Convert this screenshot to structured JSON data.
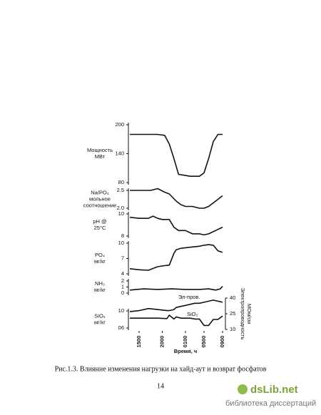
{
  "chart_data": [
    {
      "type": "line",
      "ylabel": [
        "Мощность",
        "МВт"
      ],
      "xlim": [
        -2,
        18
      ],
      "ylim": [
        80,
        200
      ],
      "yticks": [
        80,
        140,
        200
      ],
      "color": "#111111",
      "x": [
        -2,
        4,
        5.5,
        6.5,
        7.5,
        8.5,
        11,
        13,
        14,
        15,
        16,
        17,
        18
      ],
      "values": [
        180,
        180,
        178,
        160,
        130,
        97,
        93,
        93,
        100,
        130,
        165,
        180,
        180
      ]
    },
    {
      "type": "line",
      "ylabel": [
        "Na/PO₄",
        "мольное",
        "соотношение"
      ],
      "xlim": [
        -2,
        18
      ],
      "ylim": [
        2.0,
        2.5
      ],
      "yticks": [
        {
          "value": 2.0,
          "label": "2.0"
        },
        2.5
      ],
      "color": "#111111",
      "x": [
        -2,
        2.5,
        4,
        5.5,
        6.5,
        8,
        9,
        10,
        11.5,
        13,
        14,
        15,
        16.5,
        18
      ],
      "values": [
        2.5,
        2.5,
        2.55,
        2.45,
        2.4,
        2.2,
        2.1,
        2.05,
        2.05,
        2.0,
        2.0,
        2.05,
        2.2,
        2.35
      ]
    },
    {
      "type": "line",
      "ylabel": [
        "pH @",
        "25°C"
      ],
      "xlim": [
        -2,
        18
      ],
      "ylim": [
        8,
        10
      ],
      "yticks": [
        8,
        10
      ],
      "color": "#111111",
      "x": [
        -2,
        0,
        2,
        3,
        4,
        5,
        6.5,
        7.5,
        8.5,
        10,
        11.5,
        13,
        14,
        15,
        16.5,
        18
      ],
      "values": [
        9.7,
        9.6,
        9.6,
        9.8,
        9.6,
        9.5,
        9.5,
        8.8,
        8.5,
        8.5,
        8.2,
        8.2,
        8.1,
        8.2,
        8.5,
        8.8
      ]
    },
    {
      "type": "line",
      "ylabel": [
        "PO₄",
        "мг/кг"
      ],
      "xlim": [
        -2,
        18
      ],
      "ylim": [
        4,
        10
      ],
      "yticks": [
        4,
        7,
        10
      ],
      "color": "#111111",
      "x": [
        -2,
        0,
        2,
        4,
        5.5,
        6.5,
        7.5,
        8,
        9,
        11,
        13,
        14,
        15,
        16,
        17,
        18
      ],
      "values": [
        5,
        4.8,
        4.7,
        5.4,
        5.6,
        5.7,
        8,
        8.7,
        9,
        9.2,
        9.4,
        9.6,
        9.7,
        9.6,
        8.5,
        8.2
      ]
    },
    {
      "type": "line",
      "ylabel": [
        "NH₃",
        "мг/кг"
      ],
      "xlim": [
        -2,
        18
      ],
      "ylim": [
        0,
        2
      ],
      "yticks": [
        0,
        1,
        2
      ],
      "color": "#111111",
      "x": [
        -2,
        1,
        4,
        7,
        10,
        13,
        15,
        16.5,
        17.5,
        18
      ],
      "values": [
        0.5,
        0.7,
        0.6,
        0.7,
        0.6,
        0.6,
        0.7,
        0.5,
        0.7,
        1.1
      ]
    },
    {
      "type": "line",
      "ylabel": [
        "SiO₂",
        "мг/кг"
      ],
      "xlim": [
        -2,
        18
      ],
      "ylim": [
        6,
        10
      ],
      "yticks": [
        {
          "value": 6,
          "label": "06"
        },
        10
      ],
      "y2label": [
        "Электропроводность",
        "МОм/см"
      ],
      "y2lim": [
        10,
        40
      ],
      "y2ticks": [
        10,
        25,
        40
      ],
      "xlabel": "Время, ч",
      "xticks": [
        {
          "value": 0,
          "label": "1500"
        },
        {
          "value": 5,
          "label": "2000"
        },
        {
          "value": 10,
          "label": "0100"
        },
        {
          "value": 14,
          "label": "0500"
        },
        {
          "value": 18,
          "label": "0900"
        }
      ],
      "x": [
        -2,
        0,
        2,
        4,
        6,
        6.5,
        7.5,
        8,
        9,
        10,
        11,
        12,
        13,
        14,
        15,
        16,
        17,
        18
      ],
      "series": [
        {
          "name": "SiO₂",
          "color": "#111111",
          "values": [
            8.3,
            8.3,
            8.3,
            8.3,
            8.2,
            9,
            8.1,
            8.6,
            8.3,
            8.3,
            8.3,
            8.1,
            8.1,
            6.6,
            6.6,
            8,
            8,
            8.8
          ]
        },
        {
          "name": "Эл-пров.",
          "color": "#111111",
          "axis": "y2",
          "values": [
            27,
            28,
            30,
            29,
            28,
            28,
            29,
            31,
            32,
            33,
            34,
            35,
            35,
            36,
            37,
            38,
            37,
            36
          ]
        }
      ]
    }
  ],
  "caption": "Рис.1.3. Влияние изменения нагрузки на хайд-аут и возврат фосфатов",
  "page_number": "14",
  "watermark": {
    "logo": "dsLib.net",
    "tagline": "библиотека диссертаций"
  }
}
